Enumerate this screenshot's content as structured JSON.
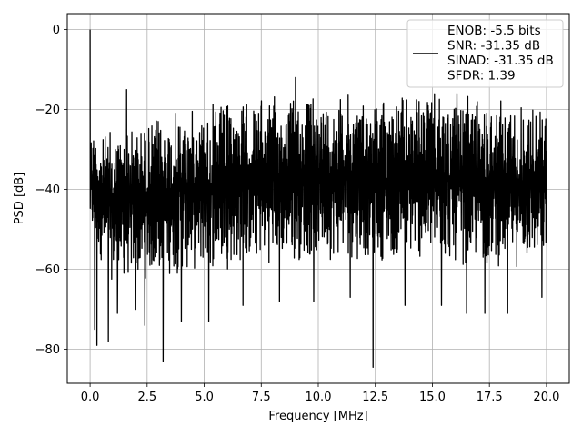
{
  "chart_data": {
    "type": "line",
    "title": "",
    "xlabel": "Frequency [MHz]",
    "ylabel": "PSD [dB]",
    "xlim": [
      -1.0,
      21.0
    ],
    "ylim": [
      -88.5,
      4.0
    ],
    "xticks": [
      0.0,
      2.5,
      5.0,
      7.5,
      10.0,
      12.5,
      15.0,
      17.5,
      20.0
    ],
    "xtick_labels": [
      "0.0",
      "2.5",
      "5.0",
      "7.5",
      "10.0",
      "12.5",
      "15.0",
      "17.5",
      "20.0"
    ],
    "yticks": [
      0,
      -20,
      -40,
      -60,
      -80
    ],
    "ytick_labels": [
      "0",
      "−20",
      "−40",
      "−60",
      "−80"
    ],
    "grid": true,
    "legend_position": "top-right",
    "legend_entries": [
      "ENOB: -5.5 bits",
      "SNR: -31.35 dB",
      "SINAD: -31.35 dB",
      "SFDR: 1.39"
    ],
    "series": [
      {
        "color": "#000000",
        "x_range": [
          0.0,
          20.0
        ],
        "upper_envelope": [
          [
            0.0,
            -22
          ],
          [
            0.5,
            -26
          ],
          [
            1.0,
            -24
          ],
          [
            2.0,
            -23
          ],
          [
            3.0,
            -21
          ],
          [
            4.0,
            -19.5
          ],
          [
            5.0,
            -18.5
          ],
          [
            6.0,
            -17.5
          ],
          [
            7.5,
            -16.5
          ],
          [
            9.0,
            -15.5
          ],
          [
            10.5,
            -15.5
          ],
          [
            12.0,
            -15.5
          ],
          [
            13.5,
            -15.5
          ],
          [
            15.0,
            -15.5
          ],
          [
            16.5,
            -16
          ],
          [
            18.0,
            -16.5
          ],
          [
            19.0,
            -17
          ],
          [
            20.0,
            -17.5
          ]
        ],
        "lower_envelope": [
          [
            0.0,
            -53
          ],
          [
            1.0,
            -64
          ],
          [
            2.5,
            -63
          ],
          [
            5.0,
            -61
          ],
          [
            7.5,
            -59
          ],
          [
            10.0,
            -58
          ],
          [
            12.5,
            -58
          ],
          [
            15.0,
            -59
          ],
          [
            17.5,
            -60
          ],
          [
            20.0,
            -60
          ]
        ],
        "peaks": [
          [
            0.0,
            0.0
          ],
          [
            1.6,
            -15.0
          ],
          [
            9.0,
            -12.0
          ]
        ],
        "dips": [
          [
            0.2,
            -75
          ],
          [
            0.3,
            -79
          ],
          [
            0.8,
            -78
          ],
          [
            1.2,
            -71
          ],
          [
            2.0,
            -70
          ],
          [
            2.4,
            -74
          ],
          [
            3.2,
            -83
          ],
          [
            4.0,
            -73
          ],
          [
            5.2,
            -73
          ],
          [
            6.7,
            -69
          ],
          [
            8.3,
            -68
          ],
          [
            9.8,
            -68
          ],
          [
            11.4,
            -67
          ],
          [
            12.4,
            -84.5
          ],
          [
            13.8,
            -69
          ],
          [
            15.4,
            -69
          ],
          [
            16.5,
            -71
          ],
          [
            17.3,
            -71
          ],
          [
            18.3,
            -71
          ],
          [
            19.8,
            -67
          ]
        ]
      }
    ]
  }
}
